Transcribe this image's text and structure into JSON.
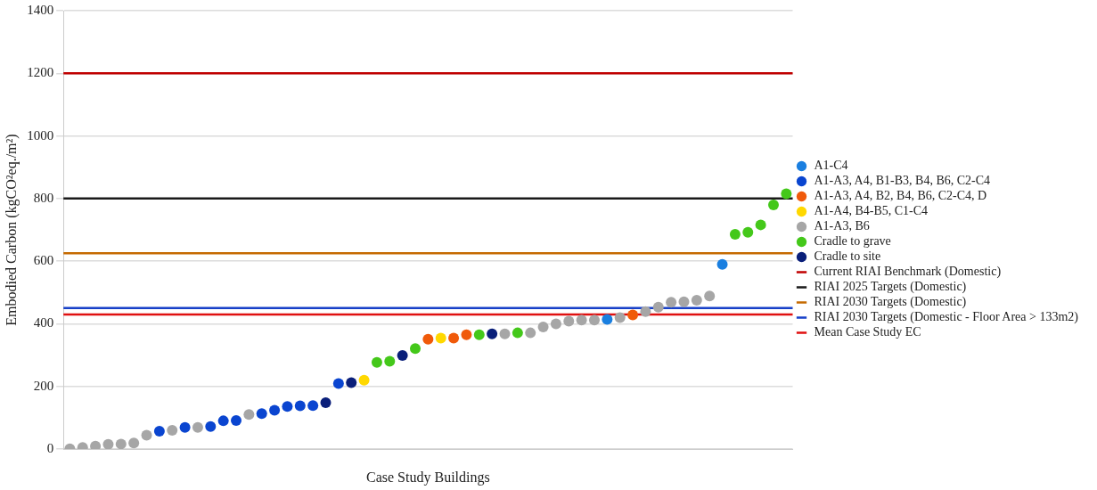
{
  "chart_data": {
    "type": "scatter",
    "xlabel": "Case Study Buildings",
    "ylabel": "Embodied Carbon (kgCO²eq./m²)",
    "categories": [
      null,
      null,
      null,
      null,
      null,
      null,
      null,
      null,
      null,
      null,
      null,
      null,
      null,
      null,
      null,
      null,
      null,
      null,
      null,
      null,
      null,
      null,
      null,
      null,
      null,
      null,
      null,
      null,
      null,
      null,
      null,
      null,
      null,
      null,
      null,
      null,
      null,
      null,
      null,
      null,
      null,
      null,
      null,
      null,
      null,
      null,
      null,
      null,
      null,
      null,
      null,
      null,
      null,
      null,
      null,
      null,
      null
    ],
    "ylim": [
      0,
      1400
    ],
    "yticks": [
      0,
      200,
      400,
      600,
      800,
      1000,
      1200,
      1400
    ],
    "grid": "y",
    "legend": "right",
    "marker": "circle",
    "series": [
      {
        "name": "A1-C4",
        "color": "#1a7fe0",
        "values": [
          null,
          null,
          null,
          null,
          null,
          null,
          null,
          null,
          null,
          null,
          null,
          null,
          null,
          null,
          null,
          null,
          null,
          null,
          null,
          null,
          null,
          null,
          null,
          null,
          null,
          null,
          null,
          null,
          null,
          null,
          null,
          null,
          null,
          null,
          null,
          null,
          null,
          null,
          null,
          null,
          null,
          null,
          414,
          null,
          null,
          null,
          null,
          null,
          null,
          null,
          null,
          590,
          null,
          null,
          null,
          null,
          null
        ]
      },
      {
        "name": "A1-A3, A4, B1-B3, B4, B6, C2-C4",
        "color": "#0a45d0",
        "values": [
          null,
          null,
          null,
          null,
          null,
          null,
          null,
          57,
          null,
          69,
          null,
          72,
          90,
          91,
          null,
          113,
          124,
          136,
          138,
          139,
          null,
          209,
          null,
          null,
          null,
          null,
          null,
          null,
          null,
          null,
          null,
          null,
          null,
          null,
          null,
          null,
          null,
          null,
          null,
          null,
          null,
          null,
          null,
          null,
          null,
          null,
          null,
          null,
          null,
          null,
          null,
          null,
          null,
          null,
          null,
          null,
          null
        ]
      },
      {
        "name": "A1-A3, A4, B2, B4, B6, C2-C4, D",
        "color": "#f05a0a",
        "values": [
          null,
          null,
          null,
          null,
          null,
          null,
          null,
          null,
          null,
          null,
          null,
          null,
          null,
          null,
          null,
          null,
          null,
          null,
          null,
          null,
          null,
          null,
          null,
          null,
          null,
          null,
          null,
          null,
          351,
          null,
          354,
          365,
          null,
          null,
          null,
          null,
          null,
          null,
          null,
          null,
          null,
          null,
          null,
          null,
          428,
          null,
          null,
          null,
          null,
          null,
          null,
          null,
          null,
          null,
          null,
          null,
          null
        ]
      },
      {
        "name": "A1-A4, B4-B5, C1-C4",
        "color": "#ffd800",
        "values": [
          null,
          null,
          null,
          null,
          null,
          null,
          null,
          null,
          null,
          null,
          null,
          null,
          null,
          null,
          null,
          null,
          null,
          null,
          null,
          null,
          null,
          null,
          null,
          220,
          null,
          null,
          null,
          null,
          null,
          354,
          null,
          null,
          null,
          null,
          null,
          null,
          null,
          null,
          null,
          null,
          null,
          null,
          null,
          null,
          null,
          null,
          null,
          null,
          null,
          null,
          null,
          null,
          null,
          null,
          null,
          null,
          null
        ]
      },
      {
        "name": "A1-A3, B6",
        "color": "#a6a6a6",
        "values": [
          1,
          5,
          9,
          15,
          16,
          19,
          44,
          null,
          60,
          null,
          69,
          null,
          null,
          null,
          110,
          null,
          null,
          null,
          null,
          null,
          null,
          null,
          null,
          null,
          null,
          null,
          null,
          null,
          null,
          null,
          null,
          null,
          null,
          null,
          368,
          null,
          371,
          390,
          400,
          408,
          412,
          412,
          null,
          420,
          null,
          439,
          453,
          469,
          470,
          475,
          489,
          null,
          null,
          null,
          null,
          null,
          null
        ]
      },
      {
        "name": "Cradle to grave",
        "color": "#44c81a",
        "values": [
          null,
          null,
          null,
          null,
          null,
          null,
          null,
          null,
          null,
          null,
          null,
          null,
          null,
          null,
          null,
          null,
          null,
          null,
          null,
          null,
          null,
          null,
          null,
          null,
          277,
          280,
          null,
          321,
          null,
          null,
          null,
          null,
          365,
          null,
          null,
          371,
          null,
          null,
          null,
          null,
          null,
          null,
          null,
          null,
          null,
          null,
          null,
          null,
          null,
          null,
          null,
          null,
          686,
          692,
          716,
          780,
          815
        ]
      },
      {
        "name": "Cradle to site",
        "color": "#0a1f7a",
        "values": [
          null,
          null,
          null,
          null,
          null,
          null,
          null,
          null,
          null,
          null,
          null,
          null,
          null,
          null,
          null,
          null,
          null,
          null,
          null,
          null,
          148,
          null,
          212,
          null,
          null,
          null,
          299,
          null,
          null,
          null,
          null,
          null,
          null,
          368,
          null,
          null,
          null,
          null,
          null,
          null,
          null,
          null,
          null,
          null,
          null,
          null,
          null,
          null,
          null,
          null,
          null,
          null,
          null,
          null,
          null,
          null,
          null
        ]
      }
    ],
    "ref_lines": [
      {
        "axis": "y",
        "value": 1200,
        "label": "Current RIAI Benchmark (Domestic)",
        "color": "#c00000"
      },
      {
        "axis": "y",
        "value": 800,
        "label": "RIAI 2025 Targets (Domestic)",
        "color": "#1a1a1a"
      },
      {
        "axis": "y",
        "value": 625,
        "label": "RIAI 2030 Targets (Domestic)",
        "color": "#c56a00"
      },
      {
        "axis": "y",
        "value": 450,
        "label": "RIAI 2030 Targets (Domestic - Floor Area > 133m2)",
        "color": "#1740c8"
      },
      {
        "axis": "y",
        "value": 430,
        "label": "Mean Case Study EC",
        "color": "#e01010"
      }
    ]
  }
}
